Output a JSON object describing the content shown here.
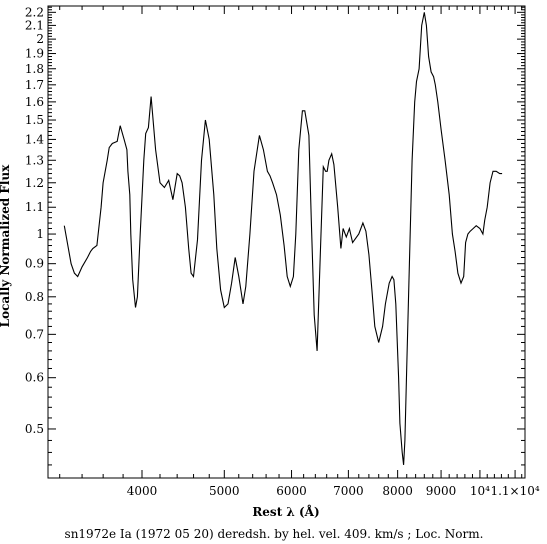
{
  "chart_data": {
    "type": "line",
    "title": "",
    "xlabel": "Rest λ (Å)",
    "ylabel": "Locally Normalized Flux",
    "caption": "sn1972e Ia (1972 05 20) deredsh. by hel. vel.   409. km/s ;  Loc. Norm.",
    "xscale": "log",
    "yscale": "log",
    "xlim": [
      3100,
      11300
    ],
    "ylim": [
      0.42,
      2.25
    ],
    "x_ticks": [
      {
        "value": 4000,
        "label": "4000"
      },
      {
        "value": 5000,
        "label": "5000"
      },
      {
        "value": 6000,
        "label": "6000"
      },
      {
        "value": 7000,
        "label": "7000"
      },
      {
        "value": 8000,
        "label": "8000"
      },
      {
        "value": 9000,
        "label": "9000"
      },
      {
        "value": 10000,
        "label": "10⁴"
      },
      {
        "value": 11000,
        "label": "1.1×10⁴"
      }
    ],
    "y_ticks": [
      {
        "value": 0.5,
        "label": "0.5"
      },
      {
        "value": 0.6,
        "label": "0.6"
      },
      {
        "value": 0.7,
        "label": "0.7"
      },
      {
        "value": 0.8,
        "label": "0.8"
      },
      {
        "value": 0.9,
        "label": "0.9"
      },
      {
        "value": 1.0,
        "label": "1"
      },
      {
        "value": 1.1,
        "label": "1.1"
      },
      {
        "value": 1.2,
        "label": "1.2"
      },
      {
        "value": 1.3,
        "label": "1.3"
      },
      {
        "value": 1.4,
        "label": "1.4"
      },
      {
        "value": 1.5,
        "label": "1.5"
      },
      {
        "value": 1.6,
        "label": "1.6"
      },
      {
        "value": 1.7,
        "label": "1.7"
      },
      {
        "value": 1.8,
        "label": "1.8"
      },
      {
        "value": 1.9,
        "label": "1.9"
      },
      {
        "value": 2.0,
        "label": "2"
      },
      {
        "value": 2.1,
        "label": "2.1"
      },
      {
        "value": 2.2,
        "label": "2.2"
      }
    ],
    "series": [
      {
        "color": "#000000",
        "x": [
          3240,
          3300,
          3330,
          3360,
          3400,
          3450,
          3480,
          3500,
          3540,
          3580,
          3600,
          3640,
          3660,
          3690,
          3740,
          3770,
          3810,
          3840,
          3850,
          3870,
          3880,
          3900,
          3930,
          3950,
          3980,
          4020,
          4040,
          4070,
          4100,
          4150,
          4200,
          4250,
          4300,
          4350,
          4400,
          4430,
          4460,
          4500,
          4540,
          4570,
          4600,
          4650,
          4700,
          4750,
          4800,
          4860,
          4900,
          4950,
          5000,
          5050,
          5100,
          5150,
          5200,
          5260,
          5300,
          5360,
          5420,
          5500,
          5560,
          5620,
          5660,
          5700,
          5760,
          5820,
          5880,
          5930,
          5980,
          6030,
          6070,
          6120,
          6180,
          6220,
          6290,
          6330,
          6380,
          6430,
          6490,
          6540,
          6580,
          6610,
          6640,
          6690,
          6730,
          6800,
          6860,
          6900,
          6960,
          7020,
          7080,
          7200,
          7280,
          7340,
          7400,
          7460,
          7520,
          7600,
          7680,
          7740,
          7820,
          7880,
          7920,
          7960,
          8020,
          8050,
          8100,
          8130,
          8160,
          8200,
          8260,
          8320,
          8380,
          8420,
          8480,
          8540,
          8600,
          8650,
          8700,
          8760,
          8820,
          8860,
          8920,
          9000,
          9100,
          9200,
          9280,
          9350,
          9420,
          9500,
          9570,
          9620,
          9680,
          9740,
          9820,
          9900,
          10000,
          10080,
          10130,
          10200,
          10280,
          10360,
          10450,
          10550,
          10620
        ],
        "y": [
          1.03,
          0.9,
          0.87,
          0.86,
          0.89,
          0.92,
          0.94,
          0.95,
          0.96,
          1.1,
          1.2,
          1.3,
          1.36,
          1.38,
          1.39,
          1.47,
          1.4,
          1.35,
          1.25,
          1.15,
          1.0,
          0.85,
          0.77,
          0.8,
          1.0,
          1.3,
          1.43,
          1.46,
          1.63,
          1.35,
          1.2,
          1.18,
          1.21,
          1.13,
          1.24,
          1.23,
          1.2,
          1.1,
          0.95,
          0.87,
          0.86,
          0.98,
          1.3,
          1.5,
          1.4,
          1.15,
          0.95,
          0.82,
          0.77,
          0.78,
          0.84,
          0.92,
          0.86,
          0.78,
          0.83,
          1.0,
          1.25,
          1.42,
          1.35,
          1.25,
          1.23,
          1.2,
          1.15,
          1.07,
          0.96,
          0.86,
          0.83,
          0.86,
          1.0,
          1.35,
          1.55,
          1.55,
          1.42,
          1.05,
          0.75,
          0.66,
          0.95,
          1.27,
          1.25,
          1.25,
          1.3,
          1.33,
          1.28,
          1.1,
          0.95,
          1.02,
          0.99,
          1.02,
          0.97,
          1.0,
          1.04,
          1.01,
          0.93,
          0.82,
          0.72,
          0.68,
          0.72,
          0.78,
          0.84,
          0.86,
          0.85,
          0.78,
          0.6,
          0.51,
          0.46,
          0.44,
          0.48,
          0.62,
          0.9,
          1.3,
          1.6,
          1.72,
          1.8,
          2.1,
          2.2,
          2.1,
          1.88,
          1.78,
          1.75,
          1.7,
          1.6,
          1.45,
          1.3,
          1.15,
          1.0,
          0.94,
          0.87,
          0.84,
          0.86,
          0.97,
          1.0,
          1.01,
          1.02,
          1.03,
          1.02,
          1.0,
          1.05,
          1.1,
          1.2,
          1.25,
          1.25,
          1.24,
          1.24
        ]
      }
    ],
    "grid": false
  }
}
